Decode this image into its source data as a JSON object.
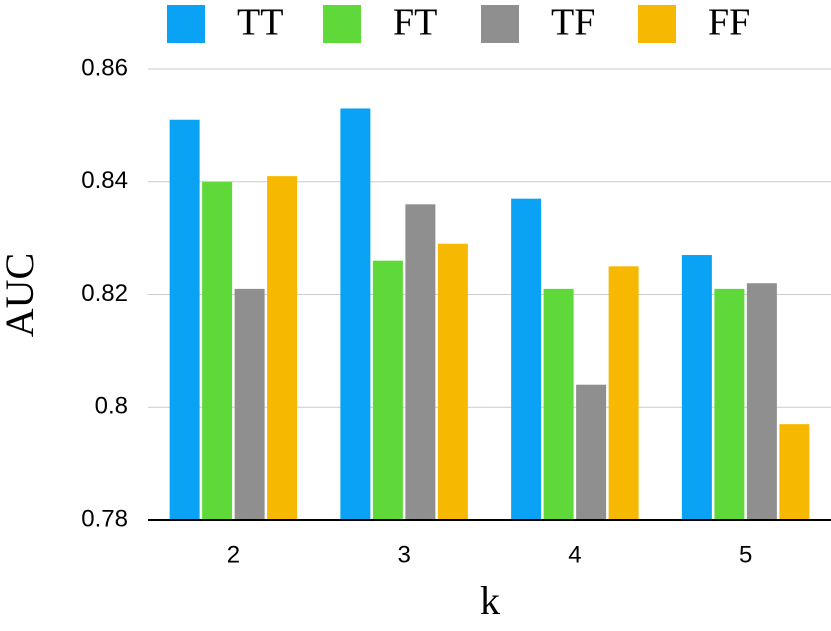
{
  "chart_data": {
    "type": "bar",
    "x_label": "k",
    "y_label": "AUC",
    "categories": [
      "2",
      "3",
      "4",
      "5"
    ],
    "series": [
      {
        "name": "TT",
        "color": "#0aa2f5",
        "values": [
          0.851,
          0.853,
          0.837,
          0.827
        ]
      },
      {
        "name": "FT",
        "color": "#5fd93a",
        "values": [
          0.84,
          0.826,
          0.821,
          0.821
        ]
      },
      {
        "name": "TF",
        "color": "#8f8f8f",
        "values": [
          0.821,
          0.836,
          0.804,
          0.822
        ]
      },
      {
        "name": "FF",
        "color": "#f6b800",
        "values": [
          0.841,
          0.829,
          0.825,
          0.797
        ]
      }
    ],
    "ylim": [
      0.78,
      0.86
    ],
    "yticks": [
      0.78,
      0.8,
      0.82,
      0.84,
      0.86
    ],
    "grid": true,
    "legend": "top"
  }
}
